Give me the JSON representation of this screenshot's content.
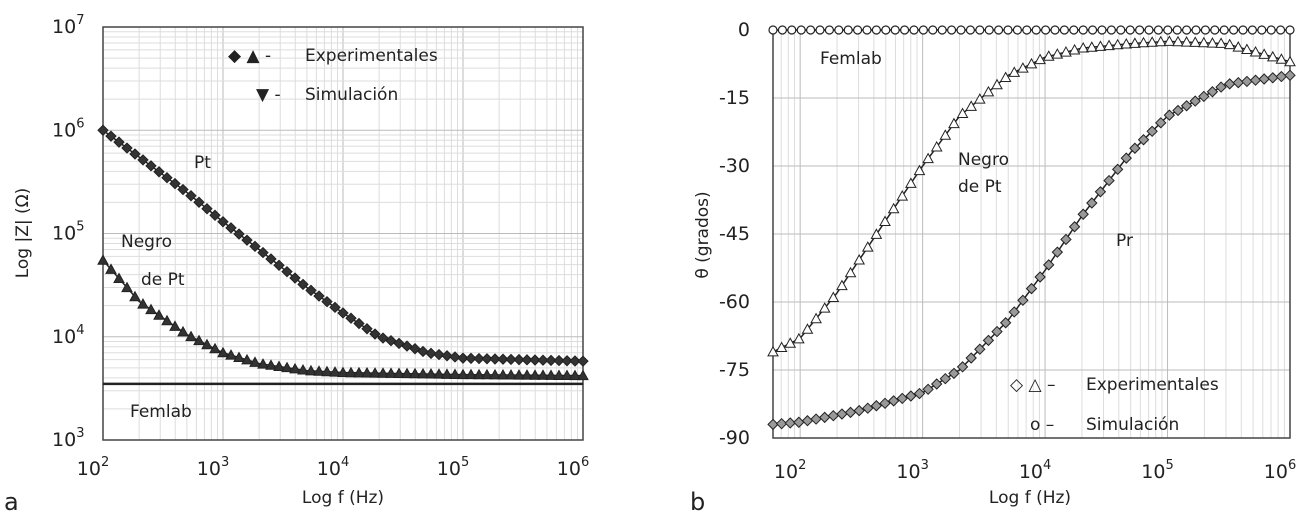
{
  "figure": {
    "panel_a_letter": "a",
    "panel_b_letter": "b"
  },
  "chart_data": [
    {
      "type": "line",
      "panel": "a",
      "xlabel": "Log f (Hz)",
      "ylabel": "Log |Z| (Ω)",
      "x_scale": "log",
      "y_scale": "log",
      "xlim": [
        100,
        1000000
      ],
      "ylim": [
        1000,
        10000000
      ],
      "x_ticks": [
        {
          "base": "10",
          "exp": "2"
        },
        {
          "base": "10",
          "exp": "3"
        },
        {
          "base": "10",
          "exp": "4"
        },
        {
          "base": "10",
          "exp": "5"
        },
        {
          "base": "10",
          "exp": "6"
        }
      ],
      "y_ticks": [
        {
          "base": "10",
          "exp": "3"
        },
        {
          "base": "10",
          "exp": "4"
        },
        {
          "base": "10",
          "exp": "5"
        },
        {
          "base": "10",
          "exp": "6"
        },
        {
          "base": "10",
          "exp": "7"
        }
      ],
      "grid": true,
      "legend": {
        "placement": "top-right",
        "entries": [
          {
            "symbols": "◆ ▲ -",
            "label": "Experimentales"
          },
          {
            "symbols": "▼ -",
            "label": "Simulación"
          }
        ]
      },
      "annotations": [
        {
          "text": "Pt"
        },
        {
          "text": "Negro"
        },
        {
          "text": "de Pt"
        },
        {
          "text": "Femlab"
        }
      ],
      "series": [
        {
          "name": "Pt",
          "marker": "diamond",
          "x": [
            100,
            200,
            500,
            1000,
            2000,
            5000,
            10000,
            20000,
            50000,
            100000,
            300000,
            1000000
          ],
          "y": [
            1000000,
            550000,
            250000,
            130000,
            70000,
            30000,
            17000,
            10000,
            7000,
            6200,
            6000,
            5800
          ]
        },
        {
          "name": "Negro de Pt",
          "marker": "triangle",
          "x": [
            100,
            200,
            500,
            1000,
            2000,
            5000,
            10000,
            100000,
            1000000
          ],
          "y": [
            55000,
            22000,
            10500,
            7000,
            5500,
            4700,
            4500,
            4300,
            4200
          ]
        },
        {
          "name": "Femlab",
          "marker": "line",
          "x": [
            100,
            1000000
          ],
          "y": [
            3500,
            3500
          ]
        }
      ]
    },
    {
      "type": "line",
      "panel": "b",
      "xlabel": "Log f (Hz)",
      "ylabel": "θ (grados)",
      "x_scale": "log",
      "y_scale": "linear",
      "xlim": [
        60,
        1000000
      ],
      "ylim": [
        -90,
        0
      ],
      "x_ticks": [
        {
          "base": "10",
          "exp": "2"
        },
        {
          "base": "10",
          "exp": "3"
        },
        {
          "base": "10",
          "exp": "4"
        },
        {
          "base": "10",
          "exp": "5"
        },
        {
          "base": "10",
          "exp": "6"
        }
      ],
      "y_ticks": [
        "0",
        "-15",
        "-30",
        "-45",
        "-60",
        "-75",
        "-90"
      ],
      "y_tick_values": [
        0,
        -15,
        -30,
        -45,
        -60,
        -75,
        -90
      ],
      "grid": true,
      "legend": {
        "placement": "bottom-right",
        "entries": [
          {
            "symbols": "◇ △ –",
            "label": "Experimentales"
          },
          {
            "symbols": "o –",
            "label": "Simulación"
          }
        ]
      },
      "annotations": [
        {
          "text": "Femlab"
        },
        {
          "text": "Negro"
        },
        {
          "text": "de Pt"
        },
        {
          "text": "Pr"
        }
      ],
      "series": [
        {
          "name": "Negro de Pt",
          "marker": "triangle",
          "x": [
            60,
            100,
            200,
            500,
            1000,
            2000,
            5000,
            10000,
            20000,
            50000,
            100000,
            300000,
            1000000
          ],
          "y": [
            -71,
            -68,
            -58,
            -42,
            -30,
            -19,
            -10,
            -6,
            -4,
            -3,
            -2.5,
            -3,
            -7
          ]
        },
        {
          "name": "Pr",
          "marker": "diamond",
          "x": [
            60,
            100,
            300,
            1000,
            2000,
            5000,
            10000,
            20000,
            50000,
            100000,
            300000,
            1000000
          ],
          "y": [
            -87,
            -86.5,
            -84,
            -80,
            -75,
            -64,
            -53,
            -41,
            -27,
            -19,
            -12,
            -10
          ]
        },
        {
          "name": "Femlab",
          "marker": "circle",
          "x": [
            60,
            1000000
          ],
          "y": [
            0,
            0
          ]
        }
      ]
    }
  ]
}
